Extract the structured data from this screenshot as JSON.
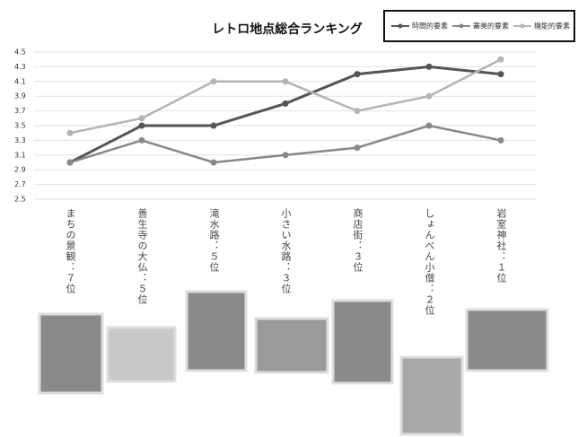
{
  "chart_data": {
    "type": "line",
    "title": "レトロ地点総合ランキング",
    "categories": [
      "まちの景観：７位",
      "善生寺の大仏：５位",
      "滝水路：５位",
      "小さい水路：３位",
      "商店街：３位",
      "しょんべん小僧：２位",
      "岩室神社：１位"
    ],
    "series": [
      {
        "name": "時間的要素",
        "color": "#555555",
        "values": [
          3.0,
          3.5,
          3.5,
          3.8,
          4.2,
          4.3,
          4.2
        ]
      },
      {
        "name": "審美的要素",
        "color": "#888888",
        "values": [
          3.0,
          3.3,
          3.0,
          3.1,
          3.2,
          3.5,
          3.3
        ]
      },
      {
        "name": "機能的要素",
        "color": "#b4b4b4",
        "values": [
          3.4,
          3.6,
          4.1,
          4.1,
          3.7,
          3.9,
          4.4
        ]
      }
    ],
    "ylim": [
      2.5,
      4.5
    ],
    "yticks": [
      2.5,
      2.7,
      2.9,
      3.1,
      3.3,
      3.5,
      3.7,
      3.9,
      4.1,
      4.3,
      4.5
    ],
    "grid": true,
    "legend": "top-right"
  }
}
